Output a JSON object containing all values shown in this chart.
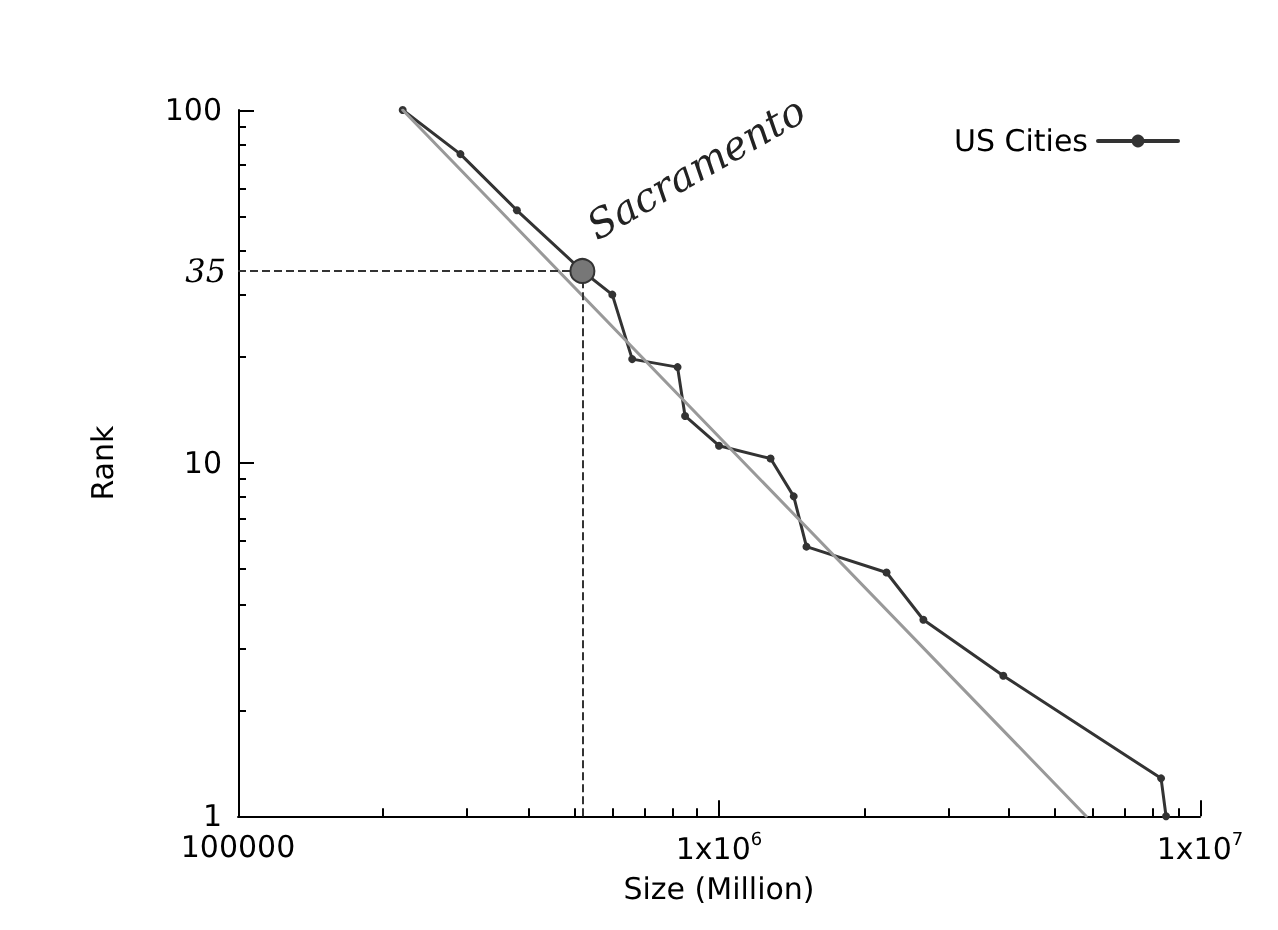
{
  "chart_data": {
    "type": "line",
    "xlabel": "Size (Million)",
    "ylabel": "Rank",
    "log": "xy",
    "grid": false,
    "legend": "top right",
    "marker": "circle",
    "xlim": [
      100000,
      10000000
    ],
    "xticks": [
      100000,
      {
        "value": 1000000,
        "label": "1x10$^{6}$"
      },
      {
        "value": 10000000,
        "label": "1x10$^{7}$"
      }
    ],
    "ylim": [
      1,
      100
    ],
    "yticks": [
      1,
      10,
      100
    ],
    "series": [
      {
        "name": "US Cities",
        "color": "#333333",
        "x": [
          220000,
          290000,
          380000,
          520000,
          600000,
          660000,
          820000,
          850000,
          1000000,
          1280000,
          1430000,
          1520000,
          2230000,
          2660000,
          3900000,
          8300000,
          8500000
        ],
        "values": [
          100,
          75,
          52,
          35,
          30,
          19.7,
          18.7,
          13.6,
          11.2,
          10.3,
          8.05,
          5.8,
          4.9,
          3.6,
          2.5,
          1.28,
          1
        ]
      },
      {
        "type": "line",
        "color": "#999999",
        "marker": "none",
        "x": [
          220000,
          5800000
        ],
        "values": [
          100,
          1
        ]
      }
    ],
    "ref_lines": [
      {
        "axis": "y",
        "value": 35,
        "label": "35",
        "line_style": "dashed",
        "color": "#333333"
      },
      {
        "axis": "x",
        "value": 520000,
        "label": null,
        "line_style": "dashed",
        "color": "#333333"
      }
    ],
    "annotations": [
      {
        "text": "Sacramento",
        "x": 520000,
        "y": 35
      }
    ]
  }
}
